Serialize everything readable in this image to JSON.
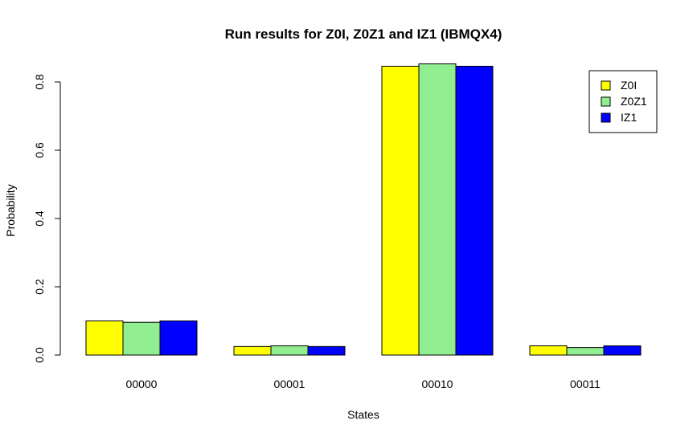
{
  "chart_data": {
    "type": "bar",
    "title": "Run results for Z0I, Z0Z1 and IZ1 (IBMQX4)",
    "xlabel": "States",
    "ylabel": "Probability",
    "categories": [
      "00000",
      "00001",
      "00010",
      "00011"
    ],
    "series": [
      {
        "name": "Z0I",
        "color": "#ffff00",
        "values": [
          0.1,
          0.025,
          0.846,
          0.027
        ]
      },
      {
        "name": "Z0Z1",
        "color": "#90ee90",
        "values": [
          0.096,
          0.027,
          0.853,
          0.022
        ]
      },
      {
        "name": "IZ1",
        "color": "#0000ff",
        "values": [
          0.1,
          0.025,
          0.846,
          0.027
        ]
      }
    ],
    "ylim": [
      0,
      0.8
    ],
    "yticks": [
      "0.0",
      "0.2",
      "0.4",
      "0.6",
      "0.8"
    ],
    "legend_position": "top-right",
    "grid": false
  }
}
